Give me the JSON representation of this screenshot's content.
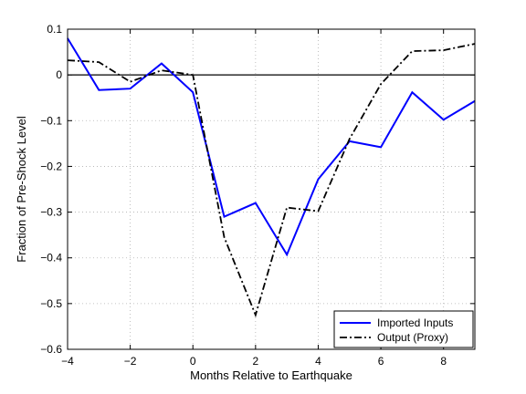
{
  "chart_data": {
    "type": "line",
    "xlabel": "Months Relative to Earthquake",
    "ylabel": "Fraction of Pre-Shock Level",
    "xlim": [
      -4,
      9
    ],
    "ylim": [
      -0.6,
      0.1
    ],
    "xticks": [
      -4,
      -2,
      0,
      2,
      4,
      6,
      8
    ],
    "xtick_labels": [
      "−4",
      "−2",
      "0",
      "2",
      "4",
      "6",
      "8"
    ],
    "yticks": [
      0.1,
      0,
      -0.1,
      -0.2,
      -0.3,
      -0.4,
      -0.5,
      -0.6
    ],
    "ytick_labels": [
      "0.1",
      "0",
      "−0.1",
      "−0.2",
      "−0.3",
      "−0.4",
      "−0.5",
      "−0.6"
    ],
    "grid": true,
    "zero_line": 0,
    "legend_position": "lower-right",
    "x": [
      -4,
      -3,
      -2,
      -1,
      0,
      1,
      2,
      3,
      4,
      5,
      6,
      7,
      8,
      9
    ],
    "series": [
      {
        "name": "Imported Inputs",
        "color": "#0000ff",
        "style": "solid",
        "values": [
          0.08,
          -0.033,
          -0.03,
          0.025,
          -0.038,
          -0.31,
          -0.28,
          -0.393,
          -0.228,
          -0.145,
          -0.158,
          -0.038,
          -0.098,
          -0.057
        ]
      },
      {
        "name": "Output (Proxy)",
        "color": "#000000",
        "style": "dashdot",
        "values": [
          0.032,
          0.028,
          -0.015,
          0.01,
          0.0,
          -0.355,
          -0.525,
          -0.29,
          -0.298,
          -0.14,
          -0.02,
          0.052,
          0.054,
          0.068
        ]
      }
    ]
  }
}
